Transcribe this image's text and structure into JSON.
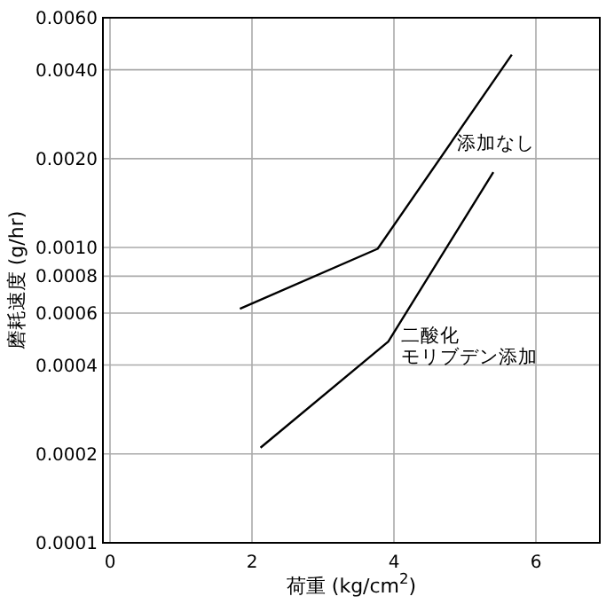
{
  "chart_data": {
    "type": "line",
    "xlabel": "荷重 (kg/cm$^{2}$)",
    "ylabel": "磨耗速度 (g/hr)",
    "log": "y",
    "grid": true,
    "legend": false,
    "marker": "none",
    "line_style": "solid",
    "xlim": [
      -0.1,
      6.9
    ],
    "xticks": [
      0,
      2,
      4,
      6
    ],
    "ylim": [
      0.0001,
      0.006
    ],
    "yticks": [
      {
        "value": 0.0001,
        "label": "0.0001"
      },
      {
        "value": 0.0002,
        "label": "0.0002"
      },
      {
        "value": 0.0004,
        "label": "0.0004"
      },
      {
        "value": 0.0006,
        "label": "0.0006"
      },
      {
        "value": 0.0008,
        "label": "0.0008"
      },
      {
        "value": 0.001,
        "label": "0.0010"
      },
      {
        "value": 0.002,
        "label": "0.0020"
      },
      {
        "value": 0.004,
        "label": "0.0040"
      },
      {
        "value": 0.006,
        "label": "0.0060"
      }
    ],
    "series": [
      {
        "name": "添加なし",
        "color": "#000000",
        "x": [
          1.83,
          3.77,
          5.66
        ],
        "values": [
          0.00062,
          0.00099,
          0.0045
        ]
      },
      {
        "name": "二酸化モリブデン添加",
        "color": "#000000",
        "x": [
          2.12,
          3.92,
          5.4
        ],
        "values": [
          0.00021,
          0.00048,
          0.0018
        ]
      }
    ]
  }
}
